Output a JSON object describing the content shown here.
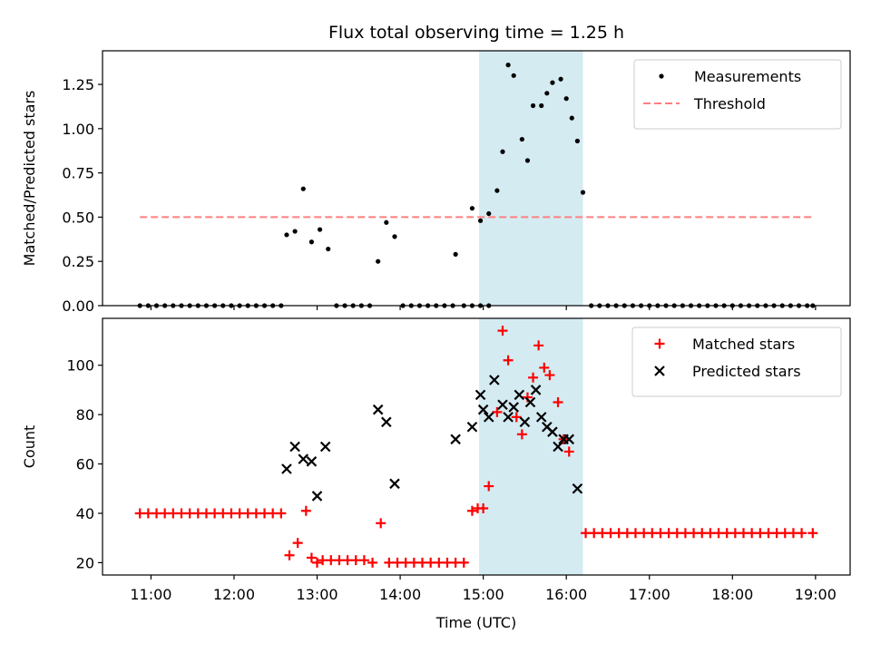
{
  "chart_data": {
    "type": "scatter",
    "title": "Flux total observing time = 1.25 h",
    "xlabel": "Time (UTC)",
    "xlim": [
      "10:25",
      "19:25"
    ],
    "x_ticks": [
      "11:00",
      "12:00",
      "13:00",
      "14:00",
      "15:00",
      "16:00",
      "17:00",
      "18:00",
      "19:00"
    ],
    "shaded_interval": [
      "14:57",
      "16:12"
    ],
    "shade_color": "#add8e6",
    "panels": [
      {
        "name": "ratio",
        "ylabel": "Matched/Predicted stars",
        "ylim": [
          0,
          1.44
        ],
        "y_ticks": [
          "0.00",
          "0.25",
          "0.50",
          "0.75",
          "1.00",
          "1.25"
        ],
        "legend_position": "top-right",
        "threshold": {
          "name": "Threshold",
          "value": 0.5,
          "x_range": [
            "10:52",
            "18:58"
          ],
          "color": "#ff7f7f"
        },
        "series": [
          {
            "name": "Measurements",
            "marker": "dot",
            "color": "#000000",
            "points": [
              [
                "10:52",
                0
              ],
              [
                "10:58",
                0
              ],
              [
                "11:04",
                0
              ],
              [
                "11:10",
                0
              ],
              [
                "11:16",
                0
              ],
              [
                "11:22",
                0
              ],
              [
                "11:28",
                0
              ],
              [
                "11:34",
                0
              ],
              [
                "11:40",
                0
              ],
              [
                "11:46",
                0
              ],
              [
                "11:52",
                0
              ],
              [
                "11:58",
                0
              ],
              [
                "12:04",
                0
              ],
              [
                "12:10",
                0
              ],
              [
                "12:16",
                0
              ],
              [
                "12:22",
                0
              ],
              [
                "12:28",
                0
              ],
              [
                "12:34",
                0
              ],
              [
                "12:38",
                0.4
              ],
              [
                "12:44",
                0.42
              ],
              [
                "12:50",
                0.66
              ],
              [
                "12:56",
                0.36
              ],
              [
                "13:02",
                0.43
              ],
              [
                "13:08",
                0.32
              ],
              [
                "13:14",
                0
              ],
              [
                "13:20",
                0
              ],
              [
                "13:26",
                0
              ],
              [
                "13:32",
                0
              ],
              [
                "13:38",
                0
              ],
              [
                "13:44",
                0.25
              ],
              [
                "13:50",
                0.47
              ],
              [
                "13:56",
                0.39
              ],
              [
                "14:02",
                0
              ],
              [
                "14:08",
                0
              ],
              [
                "14:14",
                0
              ],
              [
                "14:20",
                0
              ],
              [
                "14:26",
                0
              ],
              [
                "14:32",
                0
              ],
              [
                "14:38",
                0
              ],
              [
                "14:40",
                0.29
              ],
              [
                "14:46",
                0
              ],
              [
                "14:52",
                0
              ],
              [
                "14:58",
                0
              ],
              [
                "15:04",
                0
              ],
              [
                "14:52",
                0.55
              ],
              [
                "14:58",
                0.48
              ],
              [
                "15:04",
                0.52
              ],
              [
                "15:10",
                0.65
              ],
              [
                "15:14",
                0.87
              ],
              [
                "15:18",
                1.36
              ],
              [
                "15:22",
                1.3
              ],
              [
                "15:28",
                0.94
              ],
              [
                "15:32",
                0.82
              ],
              [
                "15:36",
                1.13
              ],
              [
                "15:42",
                1.13
              ],
              [
                "15:46",
                1.2
              ],
              [
                "15:50",
                1.26
              ],
              [
                "15:56",
                1.28
              ],
              [
                "16:00",
                1.17
              ],
              [
                "16:04",
                1.06
              ],
              [
                "16:08",
                0.93
              ],
              [
                "16:12",
                0.64
              ],
              [
                "16:18",
                0
              ],
              [
                "16:24",
                0
              ],
              [
                "16:30",
                0
              ],
              [
                "16:36",
                0
              ],
              [
                "16:42",
                0
              ],
              [
                "16:48",
                0
              ],
              [
                "16:54",
                0
              ],
              [
                "17:00",
                0
              ],
              [
                "17:06",
                0
              ],
              [
                "17:12",
                0
              ],
              [
                "17:18",
                0
              ],
              [
                "17:24",
                0
              ],
              [
                "17:30",
                0
              ],
              [
                "17:36",
                0
              ],
              [
                "17:42",
                0
              ],
              [
                "17:48",
                0
              ],
              [
                "17:54",
                0
              ],
              [
                "18:00",
                0
              ],
              [
                "18:06",
                0
              ],
              [
                "18:12",
                0
              ],
              [
                "18:18",
                0
              ],
              [
                "18:24",
                0
              ],
              [
                "18:30",
                0
              ],
              [
                "18:36",
                0
              ],
              [
                "18:42",
                0
              ],
              [
                "18:48",
                0
              ],
              [
                "18:54",
                0
              ],
              [
                "18:58",
                0
              ]
            ]
          }
        ]
      },
      {
        "name": "count",
        "ylabel": "Count",
        "ylim": [
          15,
          119
        ],
        "y_ticks": [
          "20",
          "40",
          "60",
          "80",
          "100"
        ],
        "legend_position": "top-right",
        "series": [
          {
            "name": "Matched stars",
            "marker": "plus",
            "color": "#ff0000",
            "points": [
              [
                "10:52",
                40
              ],
              [
                "10:58",
                40
              ],
              [
                "11:04",
                40
              ],
              [
                "11:10",
                40
              ],
              [
                "11:16",
                40
              ],
              [
                "11:22",
                40
              ],
              [
                "11:28",
                40
              ],
              [
                "11:34",
                40
              ],
              [
                "11:40",
                40
              ],
              [
                "11:46",
                40
              ],
              [
                "11:52",
                40
              ],
              [
                "11:58",
                40
              ],
              [
                "12:04",
                40
              ],
              [
                "12:10",
                40
              ],
              [
                "12:16",
                40
              ],
              [
                "12:22",
                40
              ],
              [
                "12:28",
                40
              ],
              [
                "12:34",
                40
              ],
              [
                "12:40",
                23
              ],
              [
                "12:46",
                28
              ],
              [
                "12:52",
                41
              ],
              [
                "12:56",
                22
              ],
              [
                "13:00",
                20
              ],
              [
                "13:04",
                21
              ],
              [
                "13:10",
                21
              ],
              [
                "13:16",
                21
              ],
              [
                "13:22",
                21
              ],
              [
                "13:28",
                21
              ],
              [
                "13:34",
                21
              ],
              [
                "13:40",
                20
              ],
              [
                "13:46",
                36
              ],
              [
                "13:52",
                20
              ],
              [
                "13:58",
                20
              ],
              [
                "14:04",
                20
              ],
              [
                "14:10",
                20
              ],
              [
                "14:16",
                20
              ],
              [
                "14:22",
                20
              ],
              [
                "14:28",
                20
              ],
              [
                "14:34",
                20
              ],
              [
                "14:40",
                20
              ],
              [
                "14:46",
                20
              ],
              [
                "14:52",
                41
              ],
              [
                "14:56",
                42
              ],
              [
                "15:00",
                42
              ],
              [
                "15:04",
                51
              ],
              [
                "15:10",
                81
              ],
              [
                "15:14",
                114
              ],
              [
                "15:18",
                102
              ],
              [
                "15:24",
                79
              ],
              [
                "15:28",
                72
              ],
              [
                "15:32",
                87
              ],
              [
                "15:36",
                95
              ],
              [
                "15:40",
                108
              ],
              [
                "15:44",
                99
              ],
              [
                "15:48",
                96
              ],
              [
                "15:54",
                85
              ],
              [
                "15:58",
                70
              ],
              [
                "16:02",
                65
              ],
              [
                "16:14",
                32
              ],
              [
                "16:20",
                32
              ],
              [
                "16:26",
                32
              ],
              [
                "16:32",
                32
              ],
              [
                "16:38",
                32
              ],
              [
                "16:44",
                32
              ],
              [
                "16:50",
                32
              ],
              [
                "16:56",
                32
              ],
              [
                "17:02",
                32
              ],
              [
                "17:08",
                32
              ],
              [
                "17:14",
                32
              ],
              [
                "17:20",
                32
              ],
              [
                "17:26",
                32
              ],
              [
                "17:32",
                32
              ],
              [
                "17:38",
                32
              ],
              [
                "17:44",
                32
              ],
              [
                "17:50",
                32
              ],
              [
                "17:56",
                32
              ],
              [
                "18:02",
                32
              ],
              [
                "18:08",
                32
              ],
              [
                "18:14",
                32
              ],
              [
                "18:20",
                32
              ],
              [
                "18:26",
                32
              ],
              [
                "18:32",
                32
              ],
              [
                "18:38",
                32
              ],
              [
                "18:44",
                32
              ],
              [
                "18:50",
                32
              ],
              [
                "18:58",
                32
              ]
            ]
          },
          {
            "name": "Predicted stars",
            "marker": "x",
            "color": "#000000",
            "points": [
              [
                "12:38",
                58
              ],
              [
                "12:44",
                67
              ],
              [
                "12:50",
                62
              ],
              [
                "12:56",
                61
              ],
              [
                "13:00",
                47
              ],
              [
                "13:06",
                67
              ],
              [
                "13:44",
                82
              ],
              [
                "13:50",
                77
              ],
              [
                "13:56",
                52
              ],
              [
                "14:40",
                70
              ],
              [
                "14:52",
                75
              ],
              [
                "14:58",
                88
              ],
              [
                "15:00",
                82
              ],
              [
                "15:04",
                79
              ],
              [
                "15:08",
                94
              ],
              [
                "15:14",
                84
              ],
              [
                "15:18",
                79
              ],
              [
                "15:22",
                83
              ],
              [
                "15:26",
                88
              ],
              [
                "15:30",
                77
              ],
              [
                "15:34",
                85
              ],
              [
                "15:38",
                90
              ],
              [
                "15:42",
                79
              ],
              [
                "15:46",
                75
              ],
              [
                "15:50",
                73
              ],
              [
                "15:54",
                67
              ],
              [
                "15:58",
                70
              ],
              [
                "16:02",
                70
              ],
              [
                "16:08",
                50
              ]
            ]
          }
        ]
      }
    ]
  }
}
